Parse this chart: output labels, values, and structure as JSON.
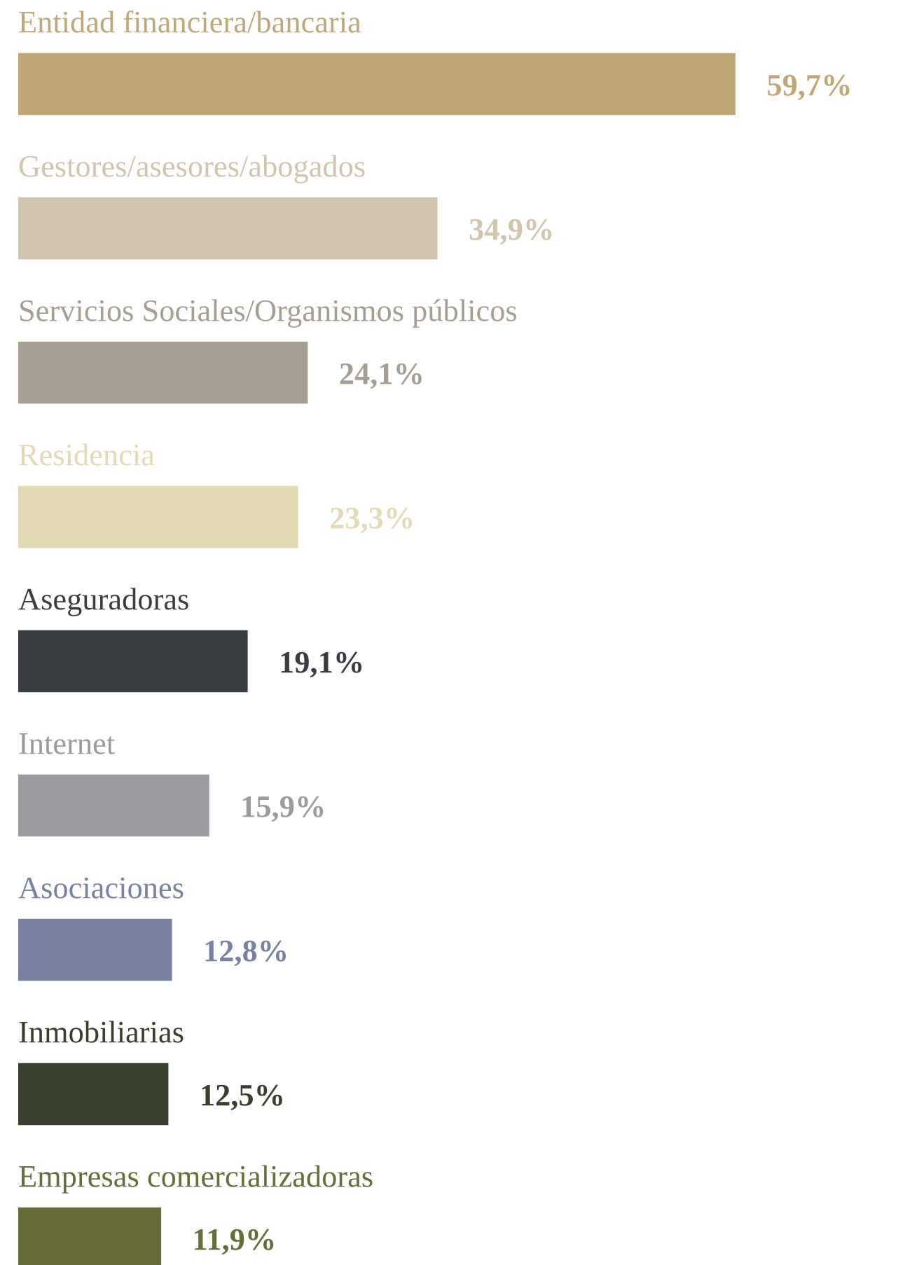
{
  "chart_data": {
    "type": "bar",
    "orientation": "horizontal",
    "data_labels": true,
    "categories": [
      "Entidad financiera/bancaria",
      "Gestores/asesores/abogados",
      "Servicios Sociales/Organismos públicos",
      "Residencia",
      "Aseguradoras",
      "Internet",
      "Asociaciones",
      "Inmobiliarias",
      "Empresas comercializadoras"
    ],
    "values": [
      59.7,
      34.9,
      24.1,
      23.3,
      19.1,
      15.9,
      12.8,
      12.5,
      11.9
    ],
    "value_labels": [
      "59,7%",
      "34,9%",
      "24,1%",
      "23,3%",
      "19,1%",
      "15,9%",
      "12,8%",
      "12,5%",
      "11,9%"
    ],
    "colors": [
      "#bfa878",
      "#d1c5ad",
      "#a59e93",
      "#e3dab5",
      "#393c40",
      "#999b9e",
      "#7882a0",
      "#383f2c",
      "#676c38"
    ]
  }
}
